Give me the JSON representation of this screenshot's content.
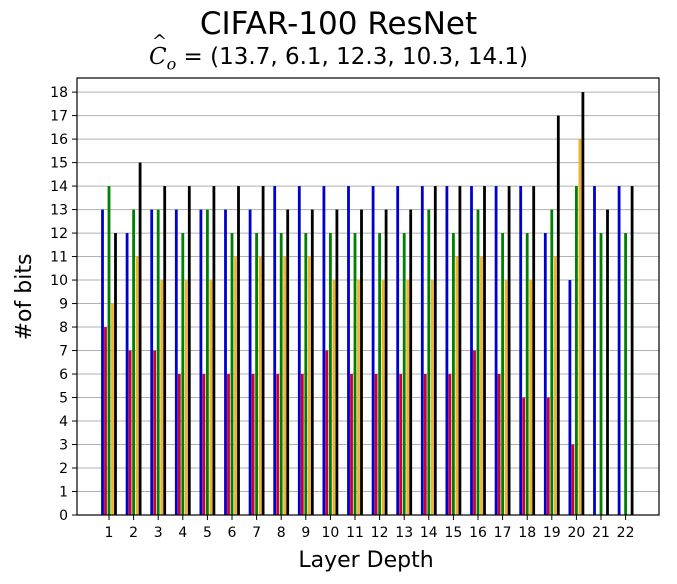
{
  "chart_data": {
    "type": "bar",
    "title": "CIFAR-100 ResNet",
    "subtitle": {
      "symbol": "C",
      "hat": "^",
      "subscript": "o",
      "equals": "=",
      "values_text": "(13.7, 6.1, 12.3, 10.3, 14.1)"
    },
    "xlabel": "Layer Depth",
    "ylabel": "#of bits",
    "ylim": [
      0,
      18.6
    ],
    "yticks": [
      0,
      1,
      2,
      3,
      4,
      5,
      6,
      7,
      8,
      9,
      10,
      11,
      12,
      13,
      14,
      15,
      16,
      17,
      18
    ],
    "categories": [
      "1",
      "2",
      "3",
      "4",
      "5",
      "6",
      "7",
      "8",
      "9",
      "10",
      "11",
      "12",
      "13",
      "14",
      "15",
      "16",
      "17",
      "18",
      "19",
      "20",
      "21",
      "22"
    ],
    "grid": "horizontal",
    "series": [
      {
        "color": "#0000cc",
        "values": [
          13,
          12,
          13,
          13,
          13,
          13,
          13,
          14,
          14,
          14,
          14,
          14,
          14,
          14,
          14,
          14,
          14,
          14,
          12,
          10,
          14,
          14
        ]
      },
      {
        "color": "#cc0033",
        "values": [
          8,
          7,
          7,
          6,
          6,
          6,
          6,
          6,
          6,
          7,
          6,
          6,
          6,
          6,
          6,
          7,
          6,
          5,
          5,
          3,
          null,
          null
        ]
      },
      {
        "color": "#008000",
        "values": [
          14,
          13,
          13,
          12,
          13,
          12,
          12,
          12,
          12,
          12,
          12,
          12,
          12,
          13,
          12,
          13,
          12,
          12,
          13,
          14,
          12,
          12
        ]
      },
      {
        "color": "#f0b030",
        "values": [
          9,
          11,
          10,
          10,
          10,
          11,
          11,
          11,
          11,
          10,
          10,
          10,
          10,
          10,
          11,
          11,
          10,
          10,
          11,
          16,
          null,
          null
        ]
      },
      {
        "color": "#000000",
        "values": [
          12,
          15,
          14,
          14,
          14,
          14,
          14,
          13,
          13,
          13,
          13,
          13,
          13,
          14,
          14,
          14,
          14,
          14,
          17,
          18,
          13,
          14
        ]
      }
    ]
  }
}
